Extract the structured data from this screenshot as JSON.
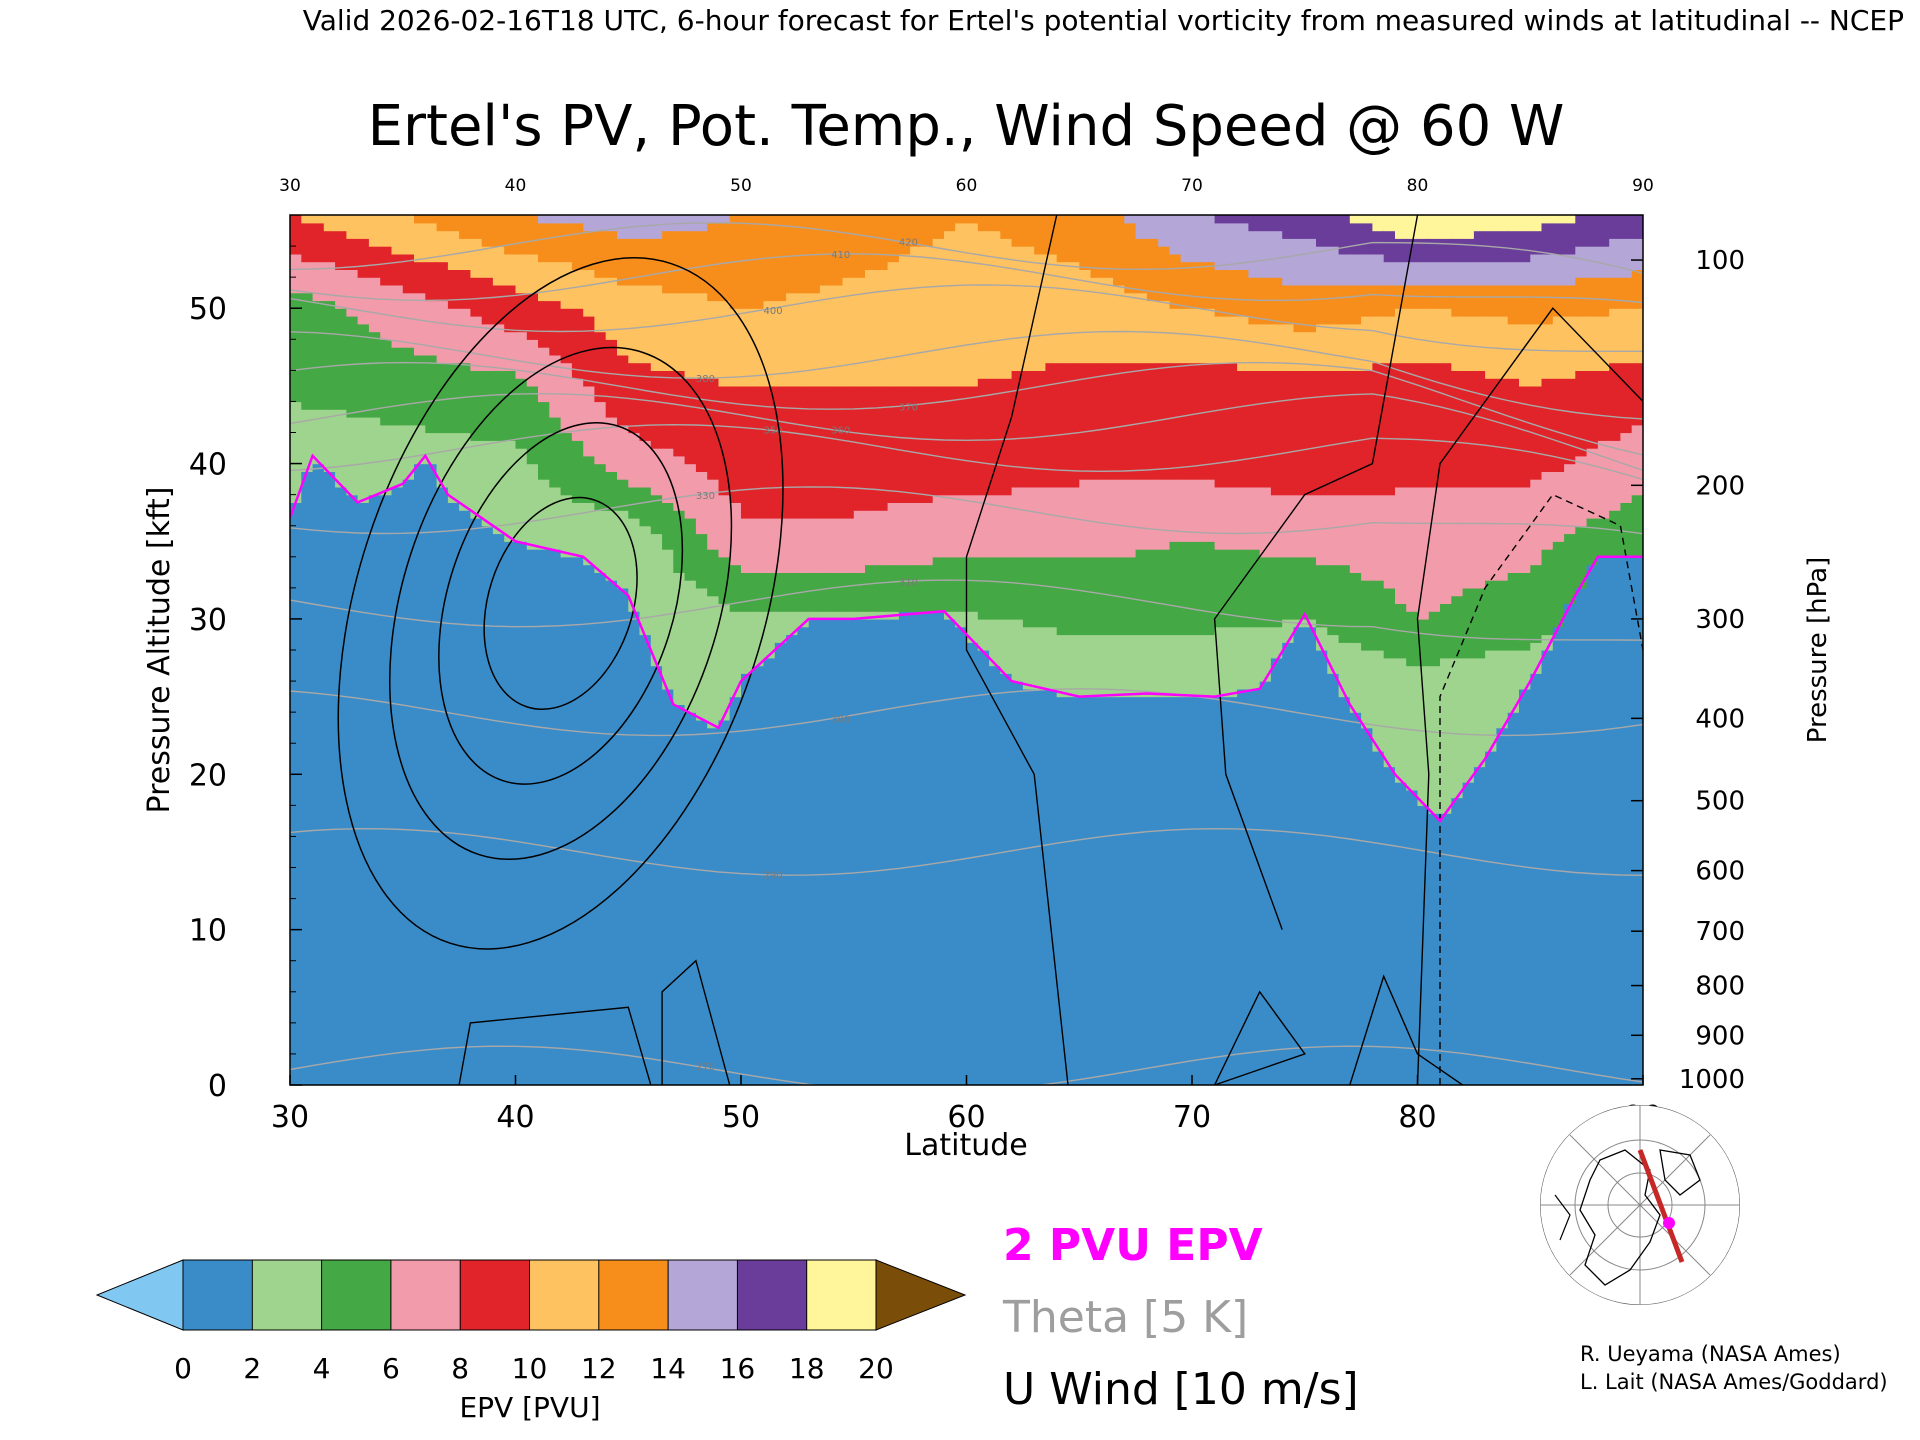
{
  "header": "Valid 2026-02-16T18 UTC, 6-hour forecast for Ertel's potential vorticity from measured winds at latitudinal -- NCEP",
  "chart_data": {
    "type": "heatmap",
    "title": "Ertel's PV, Pot. Temp., Wind Speed @ 60 W",
    "xlabel": "Latitude",
    "ylabel": "Pressure Altitude [kft]",
    "y2label": "Pressure [hPa]",
    "xlim": [
      30,
      90
    ],
    "ylim": [
      0,
      56
    ],
    "x_ticks": [
      "30",
      "40",
      "50",
      "60",
      "70",
      "80",
      "90"
    ],
    "y_ticks": [
      "0",
      "10",
      "20",
      "30",
      "40",
      "50"
    ],
    "pressure_ticks": [
      "100",
      "200",
      "300",
      "400",
      "500",
      "600",
      "700",
      "800",
      "900",
      "1000"
    ],
    "pressure_tick_alt_kft": [
      53.1,
      38.6,
      30.0,
      23.6,
      18.3,
      13.8,
      9.9,
      6.4,
      3.2,
      0.4
    ],
    "colorbar": {
      "label": "EPV [PVU]",
      "tick_labels": [
        "0",
        "2",
        "4",
        "6",
        "8",
        "10",
        "12",
        "14",
        "16",
        "18",
        "20"
      ],
      "colors": [
        "#80c8f2",
        "#3a8cc9",
        "#9fd48e",
        "#44a844",
        "#f29bab",
        "#e0242a",
        "#fec260",
        "#f78e1c",
        "#b4a6d6",
        "#6a3d9a",
        "#fff59a",
        "#7a4e09"
      ]
    },
    "legend": [
      {
        "label": "2 PVU EPV",
        "color": "#ff00ff"
      },
      {
        "label": "Theta [5 K]",
        "color": "#9e9e9e"
      },
      {
        "label": "U Wind [10 m/s]",
        "color": "#000000"
      }
    ],
    "tropopause_2pvu": {
      "lat": [
        30,
        31,
        33,
        35,
        36,
        37,
        40,
        43,
        45,
        47,
        49,
        50,
        53,
        55,
        59,
        62,
        65,
        68,
        71,
        73,
        75,
        77,
        79,
        81,
        83,
        85,
        87,
        88,
        90
      ],
      "alt_kft": [
        36.5,
        40.5,
        37.5,
        38.7,
        40.5,
        38,
        35,
        34,
        31.5,
        24.5,
        23,
        26,
        30,
        30,
        30.5,
        26,
        25,
        25.2,
        25,
        25.5,
        30.3,
        24.5,
        20,
        17,
        21,
        26,
        31.5,
        34,
        34
      ]
    },
    "epv_background": {
      "lat": [
        30,
        35,
        40,
        45,
        50,
        55,
        60,
        65,
        70,
        75,
        80,
        85,
        90
      ],
      "alt_kft": [
        0,
        15,
        25,
        30,
        35,
        40,
        45,
        50,
        56
      ],
      "pvu": [
        [
          0.8,
          0.9,
          1.0,
          1.1,
          1.2,
          1.3,
          1.4,
          1.4,
          1.3,
          1.3,
          1.4,
          1.5,
          1.4
        ],
        [
          0.9,
          1.0,
          1.1,
          1.3,
          1.4,
          1.4,
          1.4,
          1.4,
          1.4,
          1.4,
          1.5,
          1.6,
          1.5
        ],
        [
          1.0,
          1.2,
          1.3,
          1.5,
          1.6,
          1.6,
          1.7,
          1.8,
          1.8,
          1.9,
          2.6,
          2.1,
          1.8
        ],
        [
          1.3,
          1.4,
          1.6,
          1.8,
          3.6,
          3.4,
          3.8,
          4.5,
          4.5,
          4.0,
          6.0,
          5.0,
          2.5
        ],
        [
          1.6,
          1.8,
          2.0,
          2.5,
          7.5,
          7.5,
          6.5,
          6.5,
          6.0,
          6.5,
          7.0,
          6.5,
          4.5
        ],
        [
          2.2,
          3.0,
          3.5,
          7.0,
          9.0,
          9.0,
          9.0,
          8.5,
          8.5,
          9.0,
          8.5,
          8.5,
          7.0
        ],
        [
          4.5,
          5.0,
          5.5,
          9.5,
          10.0,
          10.0,
          10.0,
          9.5,
          9.0,
          9.5,
          9.0,
          10.0,
          9.0
        ],
        [
          5.0,
          7.0,
          9.0,
          11.0,
          12.0,
          11.5,
          11.0,
          11.0,
          12.0,
          13.0,
          12.0,
          12.5,
          12.0
        ],
        [
          10.0,
          12.0,
          14.0,
          15.0,
          14.0,
          13.0,
          12.0,
          13.0,
          16.0,
          17.0,
          20.0,
          19.0,
          17.0
        ]
      ]
    },
    "theta_isentropes_K": {
      "labels": [
        "270",
        "290",
        "300",
        "310",
        "330",
        "350",
        "360",
        "370",
        "380",
        "400",
        "410",
        "420"
      ],
      "level_alt_kft": [
        1,
        15,
        24,
        31,
        37,
        41,
        43,
        45,
        47,
        50,
        52,
        54
      ]
    },
    "u_wind_contours_m_s": {
      "values": [
        0,
        10,
        20,
        30,
        40,
        50,
        -10
      ],
      "jet_core": {
        "lat": 42,
        "alt_kft": 31,
        "speed": 50
      }
    }
  },
  "inset_map": {
    "label": "cross-section location map (60 W, 30N to 90N)"
  },
  "credits": [
    "R. Ueyama (NASA Ames)",
    "L. Lait (NASA Ames/Goddard)"
  ]
}
